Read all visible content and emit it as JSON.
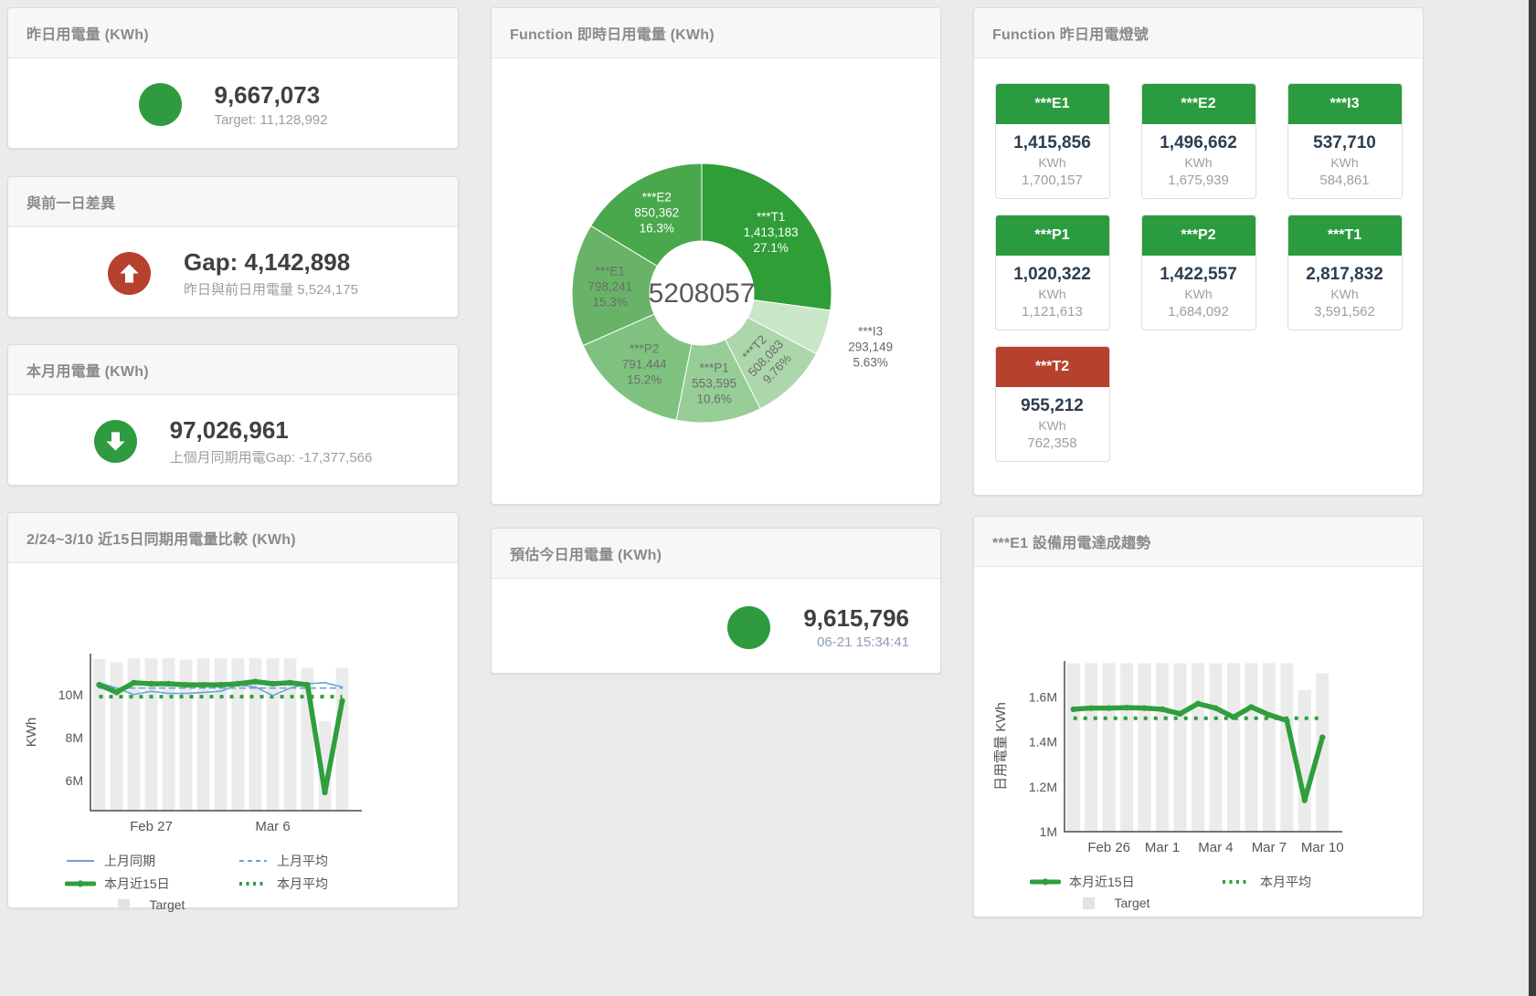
{
  "page": {
    "background": "#ebebeb",
    "accent_green": "#2e9b3e",
    "accent_red": "#b5412e"
  },
  "cards": {
    "yesterday": {
      "title": "昨日用電量 (KWh)",
      "value": "9,667,073",
      "subtitle": "Target: 11,128,992",
      "indicator": "green-circle"
    },
    "gap_prev_day": {
      "title": "與前一日差異",
      "value": "Gap: 4,142,898",
      "subtitle": "昨日與前日用電量 5,524,175",
      "indicator": "red-circle-up-arrow"
    },
    "month": {
      "title": "本月用電量 (KWh)",
      "value": "97,026,961",
      "subtitle": "上個月同期用電Gap: -17,377,566",
      "indicator": "green-circle-down-arrow"
    },
    "estimate_today": {
      "title": "預估今日用電量 (KWh)",
      "value": "9,615,796",
      "subtitle": "06-21 15:34:41",
      "indicator": "green-circle"
    },
    "realtime": {
      "title": "Function 即時日用電量 (KWh)"
    },
    "lights": {
      "title": "Function 昨日用電燈號",
      "unit": "KWh",
      "tiles": [
        {
          "name": "***E1",
          "value": "1,415,856",
          "target": "1,700,157",
          "status": "green"
        },
        {
          "name": "***E2",
          "value": "1,496,662",
          "target": "1,675,939",
          "status": "green"
        },
        {
          "name": "***I3",
          "value": "537,710",
          "target": "584,861",
          "status": "green"
        },
        {
          "name": "***P1",
          "value": "1,020,322",
          "target": "1,121,613",
          "status": "green"
        },
        {
          "name": "***P2",
          "value": "1,422,557",
          "target": "1,684,092",
          "status": "green"
        },
        {
          "name": "***T1",
          "value": "2,817,832",
          "target": "3,591,562",
          "status": "green"
        },
        {
          "name": "***T2",
          "value": "955,212",
          "target": "762,358",
          "status": "red"
        }
      ]
    },
    "compare15": {
      "title": "2/24~3/10 近15日同期用電量比較 (KWh)"
    },
    "e1_trend": {
      "title": "***E1 設備用電達成趨勢"
    }
  },
  "chart_data": [
    {
      "id": "donut",
      "type": "pie",
      "title": "Function 即時日用電量 (KWh)",
      "center_total": "5208057",
      "slices": [
        {
          "name": "***T1",
          "value": 1413183,
          "pct": 27.1,
          "pct_label": "27.1%",
          "color": "#2f9e37",
          "label_pos": "inside",
          "label_color": "#ffffff"
        },
        {
          "name": "***I3",
          "value": 293149,
          "pct": 5.63,
          "pct_label": "5.63%",
          "color": "#c9e6c9",
          "label_pos": "outside",
          "label_color": "#666666"
        },
        {
          "name": "***T2",
          "value": 508083,
          "pct": 9.76,
          "pct_label": "9.76%",
          "color": "#abd7ab",
          "label_pos": "inside-rotated",
          "label_color": "#6d6d6d"
        },
        {
          "name": "***P1",
          "value": 553595,
          "pct": 10.6,
          "pct_label": "10.6%",
          "color": "#97cd97",
          "label_pos": "inside",
          "label_color": "#6d6d6d"
        },
        {
          "name": "***P2",
          "value": 791444,
          "pct": 15.2,
          "pct_label": "15.2%",
          "color": "#7fc27f",
          "label_pos": "inside",
          "label_color": "#6d6d6d"
        },
        {
          "name": "***E1",
          "value": 798241,
          "pct": 15.3,
          "pct_label": "15.3%",
          "color": "#68b368",
          "label_pos": "inside",
          "label_color": "#6d6d6d"
        },
        {
          "name": "***E2",
          "value": 850362,
          "pct": 16.3,
          "pct_label": "16.3%",
          "color": "#48a84b",
          "label_pos": "inside",
          "label_color": "#ffffff"
        }
      ]
    },
    {
      "id": "compare15",
      "type": "line",
      "title": "2/24~3/10 近15日同期用電量比較 (KWh)",
      "ylabel": "KWh",
      "ylim": [
        4600000,
        11900000
      ],
      "yticks": [
        {
          "value": 6000000,
          "label": "6M"
        },
        {
          "value": 8000000,
          "label": "8M"
        },
        {
          "value": 10000000,
          "label": "10M"
        }
      ],
      "xticks": [
        {
          "index": 3,
          "label": "Feb 27"
        },
        {
          "index": 10,
          "label": "Mar 6"
        }
      ],
      "target_bars": {
        "name": "Target",
        "color": "#ebebeb",
        "values": [
          11650000,
          11500000,
          11680000,
          11680000,
          11680000,
          11620000,
          11680000,
          11680000,
          11680000,
          11680000,
          11680000,
          11680000,
          11230000,
          8760000,
          11230000
        ]
      },
      "series": [
        {
          "name": "上月同期",
          "color": "#6ba3d6",
          "style": "solid",
          "width": 1.6,
          "values": [
            10550000,
            10300000,
            10000000,
            10150000,
            10050000,
            10050000,
            10100000,
            10150000,
            10450000,
            10350000,
            9950000,
            10300000,
            10500000,
            10550000,
            10350000
          ]
        },
        {
          "name": "上月平均",
          "color": "#6ba3d6",
          "style": "dashed",
          "width": 1.6,
          "const": 10300000
        },
        {
          "name": "本月近15日",
          "color": "#2f9e3d",
          "style": "thick",
          "width": 5.5,
          "values": [
            10450000,
            10100000,
            10550000,
            10500000,
            10500000,
            10450000,
            10450000,
            10450000,
            10500000,
            10600000,
            10500000,
            10550000,
            10450000,
            5450000,
            9700000
          ]
        },
        {
          "name": "本月平均",
          "color": "#2f9e3d",
          "style": "dotted",
          "width": 4,
          "const": 9900000
        }
      ],
      "legend": [
        [
          {
            "label": "上月同期",
            "swatch": "solid",
            "color": "#6ba3d6"
          },
          {
            "label": "上月平均",
            "swatch": "dashed",
            "color": "#6ba3d6"
          }
        ],
        [
          {
            "label": "本月近15日",
            "swatch": "thick",
            "color": "#2f9e3d"
          },
          {
            "label": "本月平均",
            "swatch": "dotted",
            "color": "#2f9e3d"
          }
        ],
        [
          {
            "label": "Target",
            "swatch": "square",
            "color": "#e3e3e3"
          }
        ]
      ]
    },
    {
      "id": "e1trend",
      "type": "line",
      "title": "***E1 設備用電達成趨勢",
      "ylabel": "日用電量 KWh",
      "ylim": [
        1000000,
        1760000
      ],
      "yticks": [
        {
          "value": 1000000,
          "label": "1M"
        },
        {
          "value": 1200000,
          "label": "1.2M"
        },
        {
          "value": 1400000,
          "label": "1.4M"
        },
        {
          "value": 1600000,
          "label": "1.6M"
        }
      ],
      "xticks": [
        {
          "index": 2,
          "label": "Feb 26"
        },
        {
          "index": 5,
          "label": "Mar 1"
        },
        {
          "index": 8,
          "label": "Mar 4"
        },
        {
          "index": 11,
          "label": "Mar 7"
        },
        {
          "index": 14,
          "label": "Mar 10"
        }
      ],
      "target_bars": {
        "name": "Target",
        "color": "#ebebeb",
        "values": [
          1750000,
          1750000,
          1750000,
          1750000,
          1750000,
          1750000,
          1750000,
          1750000,
          1750000,
          1750000,
          1750000,
          1750000,
          1750000,
          1630000,
          1705000
        ]
      },
      "series": [
        {
          "name": "本月近15日",
          "color": "#2f9e3d",
          "style": "thick",
          "width": 5.5,
          "values": [
            1545000,
            1550000,
            1550000,
            1552000,
            1550000,
            1545000,
            1525000,
            1570000,
            1550000,
            1510000,
            1555000,
            1520000,
            1495000,
            1140000,
            1420000
          ]
        },
        {
          "name": "本月平均",
          "color": "#2f9e3d",
          "style": "dotted",
          "width": 4,
          "const": 1505000
        }
      ],
      "legend": [
        [
          {
            "label": "本月近15日",
            "swatch": "thick",
            "color": "#2f9e3d"
          },
          {
            "label": "本月平均",
            "swatch": "dotted",
            "color": "#2f9e3d"
          }
        ],
        [
          {
            "label": "Target",
            "swatch": "square",
            "color": "#e3e3e3"
          }
        ]
      ]
    }
  ]
}
